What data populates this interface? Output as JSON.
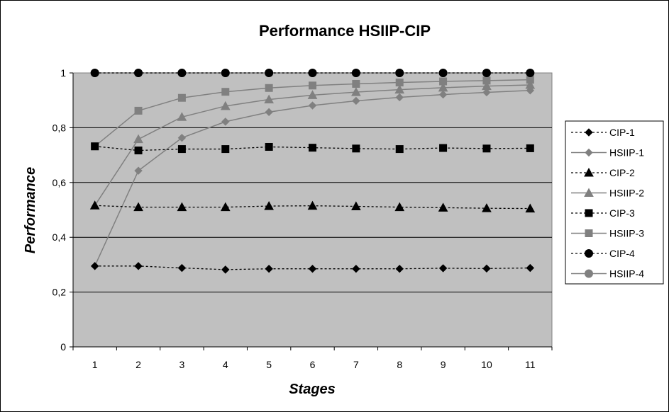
{
  "chart_data": {
    "type": "line",
    "title": "Performance HSIIP-CIP",
    "xlabel": "Stages",
    "ylabel": "Performance",
    "x": [
      1,
      2,
      3,
      4,
      5,
      6,
      7,
      8,
      9,
      10,
      11
    ],
    "ylim": [
      0,
      1
    ],
    "yticks": [
      0,
      0.2,
      0.4,
      0.6,
      0.8,
      1
    ],
    "ytick_labels": [
      "0",
      "0,2",
      "0,4",
      "0,6",
      "0,8",
      "1"
    ],
    "xtick_labels": [
      "1",
      "2",
      "3",
      "4",
      "5",
      "6",
      "7",
      "8",
      "9",
      "10",
      "11"
    ],
    "grid": true,
    "legend_position": "right",
    "plot_background": "#c0c0c0",
    "series": [
      {
        "name": "CIP-1",
        "marker": "diamond",
        "style": "dotted",
        "color": "#000000",
        "values": [
          0.295,
          0.295,
          0.288,
          0.282,
          0.285,
          0.285,
          0.285,
          0.285,
          0.287,
          0.286,
          0.288
        ]
      },
      {
        "name": "HSIIP-1",
        "marker": "diamond",
        "style": "solid",
        "color": "#808080",
        "values": [
          0.295,
          0.643,
          0.763,
          0.822,
          0.857,
          0.881,
          0.898,
          0.911,
          0.921,
          0.929,
          0.936
        ]
      },
      {
        "name": "CIP-2",
        "marker": "triangle",
        "style": "dotted",
        "color": "#000000",
        "values": [
          0.516,
          0.51,
          0.51,
          0.51,
          0.514,
          0.515,
          0.513,
          0.51,
          0.508,
          0.506,
          0.505
        ]
      },
      {
        "name": "HSIIP-2",
        "marker": "triangle",
        "style": "solid",
        "color": "#808080",
        "values": [
          0.516,
          0.758,
          0.839,
          0.879,
          0.903,
          0.919,
          0.93,
          0.939,
          0.946,
          0.952,
          0.956
        ]
      },
      {
        "name": "CIP-3",
        "marker": "square",
        "style": "dotted",
        "color": "#000000",
        "values": [
          0.732,
          0.717,
          0.722,
          0.722,
          0.73,
          0.727,
          0.724,
          0.722,
          0.726,
          0.724,
          0.725
        ]
      },
      {
        "name": "HSIIP-3",
        "marker": "square",
        "style": "solid",
        "color": "#808080",
        "values": [
          0.732,
          0.862,
          0.909,
          0.931,
          0.945,
          0.954,
          0.96,
          0.965,
          0.969,
          0.972,
          0.975
        ]
      },
      {
        "name": "CIP-4",
        "marker": "circle",
        "style": "dotted",
        "color": "#000000",
        "values": [
          1,
          1,
          1,
          1,
          1,
          1,
          1,
          1,
          1,
          1,
          1
        ]
      },
      {
        "name": "HSIIP-4",
        "marker": "circle",
        "style": "solid",
        "color": "#808080",
        "values": [
          1,
          1,
          1,
          1,
          1,
          1,
          1,
          1,
          1,
          1,
          1
        ]
      }
    ]
  }
}
